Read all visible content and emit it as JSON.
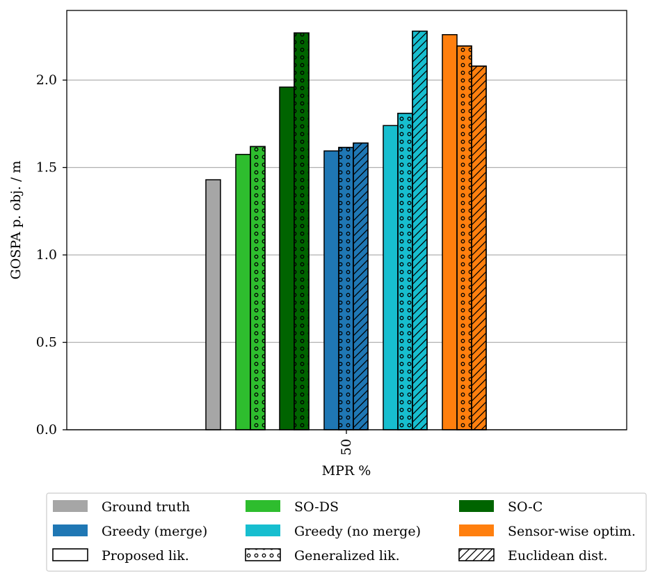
{
  "chart_data": {
    "type": "bar",
    "categories": [
      "50"
    ],
    "xlabel": "MPR %",
    "ylabel": "GOSPA p. obj. / m",
    "ylim": [
      0,
      2.4
    ],
    "yticks": [
      "0.0",
      "0.5",
      "1.0",
      "1.5",
      "2.0"
    ],
    "grid": "y",
    "series": [
      {
        "name": "Ground truth",
        "method": "Ground truth",
        "likelihood": "Proposed lik.",
        "color": "#a6a6a6",
        "hatch": "none",
        "values": [
          1.43
        ]
      },
      {
        "name": "SO-DS / Proposed lik.",
        "method": "SO-DS",
        "likelihood": "Proposed lik.",
        "color": "#2ebd2e",
        "hatch": "none",
        "values": [
          1.575
        ]
      },
      {
        "name": "SO-DS / Generalized lik.",
        "method": "SO-DS",
        "likelihood": "Generalized lik.",
        "color": "#2ebd2e",
        "hatch": "dots",
        "values": [
          1.62
        ]
      },
      {
        "name": "SO-C / Proposed lik.",
        "method": "SO-C",
        "likelihood": "Proposed lik.",
        "color": "#006400",
        "hatch": "none",
        "values": [
          1.96
        ]
      },
      {
        "name": "SO-C / Generalized lik.",
        "method": "SO-C",
        "likelihood": "Generalized lik.",
        "color": "#006400",
        "hatch": "dots",
        "values": [
          2.27
        ]
      },
      {
        "name": "Greedy (merge) / Proposed lik.",
        "method": "Greedy (merge)",
        "likelihood": "Proposed lik.",
        "color": "#1f77b4",
        "hatch": "none",
        "values": [
          1.595
        ]
      },
      {
        "name": "Greedy (merge) / Generalized lik.",
        "method": "Greedy (merge)",
        "likelihood": "Generalized lik.",
        "color": "#1f77b4",
        "hatch": "dots",
        "values": [
          1.615
        ]
      },
      {
        "name": "Greedy (merge) / Euclidean dist.",
        "method": "Greedy (merge)",
        "likelihood": "Euclidean dist.",
        "color": "#1f77b4",
        "hatch": "diag",
        "values": [
          1.64
        ]
      },
      {
        "name": "Greedy (no merge) / Proposed lik.",
        "method": "Greedy (no merge)",
        "likelihood": "Proposed lik.",
        "color": "#17becf",
        "hatch": "none",
        "values": [
          1.74
        ]
      },
      {
        "name": "Greedy (no merge) / Generalized lik.",
        "method": "Greedy (no merge)",
        "likelihood": "Generalized lik.",
        "color": "#17becf",
        "hatch": "dots",
        "values": [
          1.81
        ]
      },
      {
        "name": "Greedy (no merge) / Euclidean dist.",
        "method": "Greedy (no merge)",
        "likelihood": "Euclidean dist.",
        "color": "#17becf",
        "hatch": "diag",
        "values": [
          2.28
        ]
      },
      {
        "name": "Sensor-wise optim. / Proposed lik.",
        "method": "Sensor-wise optim.",
        "likelihood": "Proposed lik.",
        "color": "#ff7f0e",
        "hatch": "none",
        "values": [
          2.26
        ]
      },
      {
        "name": "Sensor-wise optim. / Generalized lik.",
        "method": "Sensor-wise optim.",
        "likelihood": "Generalized lik.",
        "color": "#ff7f0e",
        "hatch": "dots",
        "values": [
          2.195
        ]
      },
      {
        "name": "Sensor-wise optim. / Euclidean dist.",
        "method": "Sensor-wise optim.",
        "likelihood": "Euclidean dist.",
        "color": "#ff7f0e",
        "hatch": "diag",
        "values": [
          2.08
        ]
      }
    ],
    "legend": {
      "placement": "bottom",
      "entries": [
        {
          "label": "Ground truth",
          "color": "#a6a6a6",
          "style": "solid"
        },
        {
          "label": "SO-DS",
          "color": "#2ebd2e",
          "style": "solid"
        },
        {
          "label": "SO-C",
          "color": "#006400",
          "style": "solid"
        },
        {
          "label": "Greedy (merge)",
          "color": "#1f77b4",
          "style": "solid"
        },
        {
          "label": "Greedy (no merge)",
          "color": "#17becf",
          "style": "solid"
        },
        {
          "label": "Sensor-wise optim.",
          "color": "#ff7f0e",
          "style": "solid"
        },
        {
          "label": "Proposed lik.",
          "color": "#ffffff",
          "style": "outline"
        },
        {
          "label": "Generalized lik.",
          "color": "#ffffff",
          "style": "dots"
        },
        {
          "label": "Euclidean dist.",
          "color": "#ffffff",
          "style": "diag"
        }
      ]
    }
  }
}
